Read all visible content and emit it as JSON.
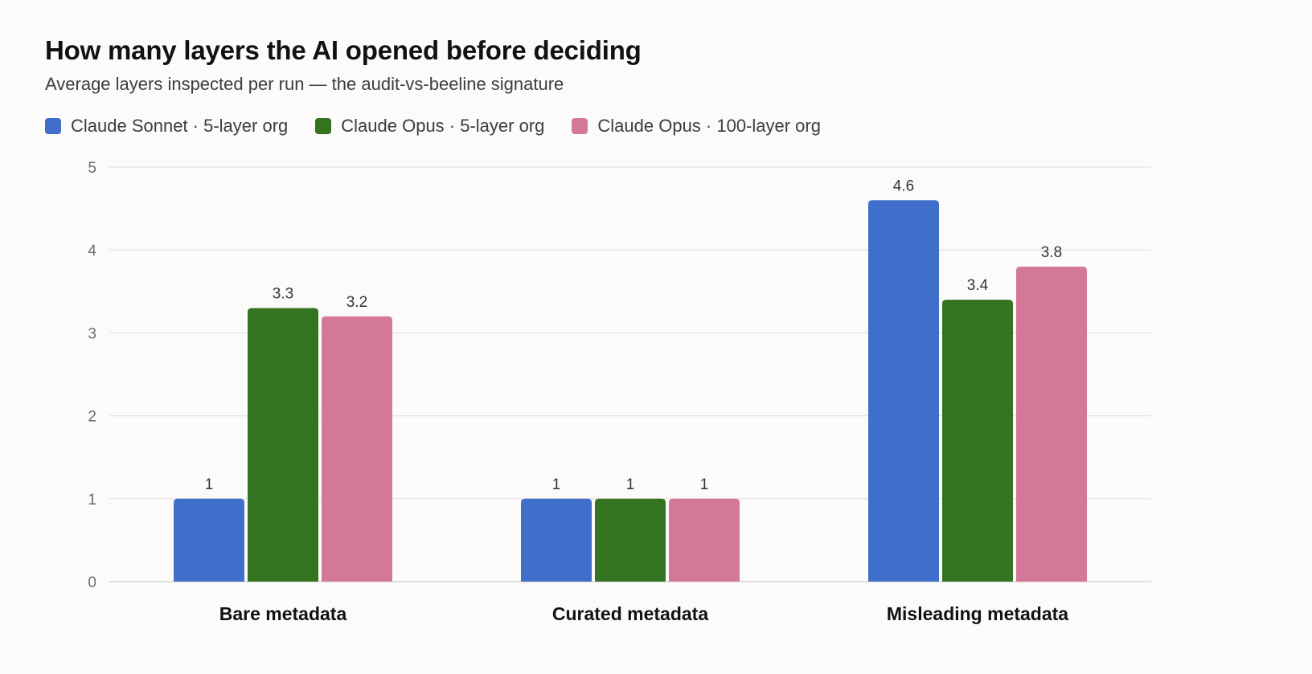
{
  "chart_data": {
    "type": "bar",
    "title": "How many layers the AI opened before deciding",
    "subtitle": "Average layers inspected per run — the audit-vs-beeline signature",
    "categories": [
      "Bare metadata",
      "Curated metadata",
      "Misleading metadata"
    ],
    "series": [
      {
        "name": "Claude Sonnet · 5-layer org",
        "color": "#3f6fcb",
        "values": [
          1,
          1,
          4.6
        ]
      },
      {
        "name": "Claude Opus · 5-layer org",
        "color": "#347320",
        "values": [
          3.3,
          1,
          3.4
        ]
      },
      {
        "name": "Claude Opus · 100-layer org",
        "color": "#d4789a",
        "values": [
          3.2,
          1,
          3.8
        ]
      }
    ],
    "ylim": [
      0,
      5
    ],
    "yticks": [
      "0",
      "1",
      "2",
      "3",
      "4",
      "5"
    ],
    "xlabel": "",
    "ylabel": "",
    "grid": true,
    "legend_position": "top-left",
    "data_labels": true
  }
}
